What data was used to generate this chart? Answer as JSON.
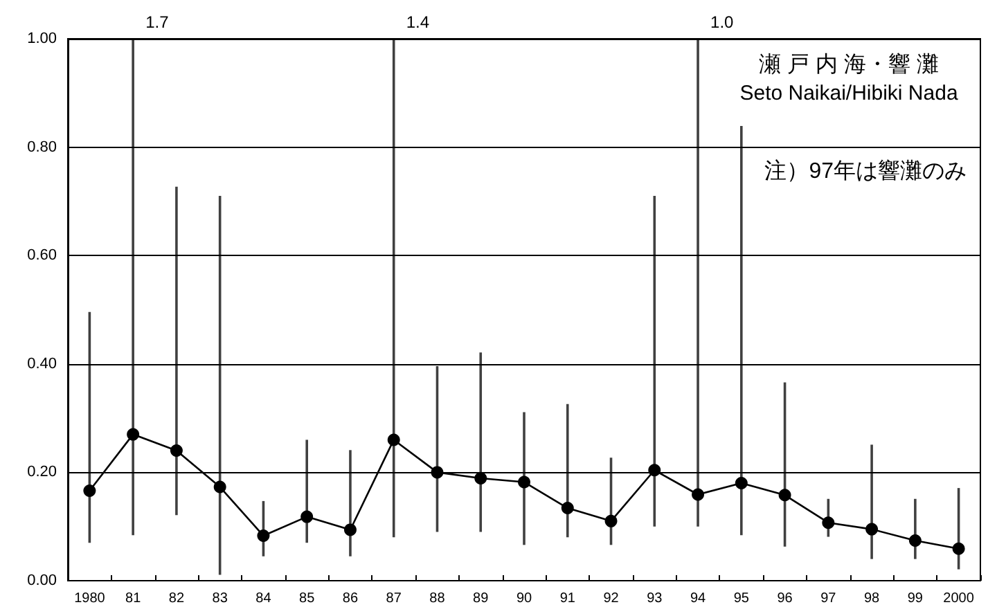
{
  "chart_data": {
    "type": "line",
    "title": "瀬 戸 内 海・響 灘",
    "subtitle": "Seto Naikai/Hibiki Nada",
    "categories": [
      "1980",
      "81",
      "82",
      "83",
      "84",
      "85",
      "86",
      "87",
      "88",
      "89",
      "90",
      "91",
      "92",
      "93",
      "94",
      "95",
      "96",
      "97",
      "98",
      "99",
      "2000"
    ],
    "series": [
      {
        "color": "#000000",
        "values": [
          0.166,
          0.27,
          0.24,
          0.173,
          0.083,
          0.118,
          0.094,
          0.26,
          0.2,
          0.189,
          0.182,
          0.134,
          0.11,
          0.204,
          0.159,
          0.18,
          0.158,
          0.107,
          0.095,
          0.074,
          0.059
        ],
        "errors": [
          [
            0.07,
            0.496
          ],
          [
            0.084,
            1.7
          ],
          [
            0.121,
            0.727
          ],
          [
            0.011,
            0.71
          ],
          [
            0.045,
            0.147
          ],
          [
            0.07,
            0.26
          ],
          [
            0.045,
            0.241
          ],
          [
            0.08,
            1.4
          ],
          [
            0.09,
            0.396
          ],
          [
            0.09,
            0.421
          ],
          [
            0.066,
            0.311
          ],
          [
            0.08,
            0.326
          ],
          [
            0.066,
            0.227
          ],
          [
            0.1,
            0.71
          ],
          [
            0.1,
            1.0
          ],
          [
            0.084,
            0.839
          ],
          [
            0.063,
            0.366
          ],
          [
            0.081,
            0.151
          ],
          [
            0.04,
            0.251
          ],
          [
            0.04,
            0.151
          ],
          [
            0.021,
            0.171
          ]
        ]
      }
    ],
    "ylim": [
      0,
      1
    ],
    "yticks": [
      {
        "value": 0,
        "label": "0.00"
      },
      {
        "value": 0.2,
        "label": "0.20"
      },
      {
        "value": 0.4,
        "label": "0.40"
      },
      {
        "value": 0.6,
        "label": "0.60"
      },
      {
        "value": 0.8,
        "label": "0.80"
      },
      {
        "value": 1,
        "label": "1.00"
      }
    ],
    "grid": "y",
    "marker": "circle",
    "line_style": "solid",
    "annotations": [
      "1.7",
      "1.4",
      "1.0",
      "注）97年は響灘のみ"
    ]
  }
}
